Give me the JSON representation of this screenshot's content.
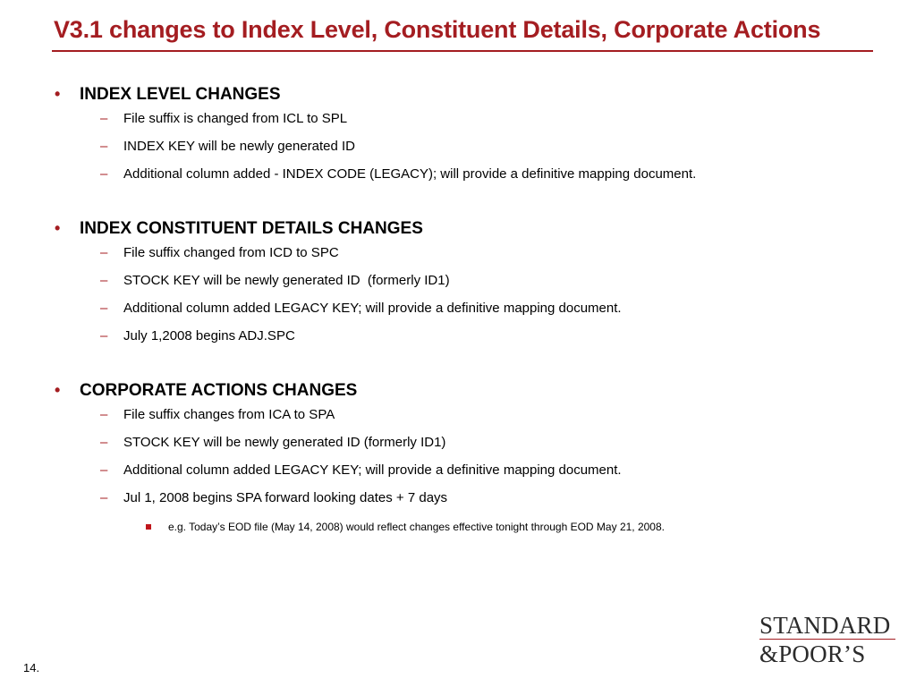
{
  "slide": {
    "title": "V3.1 changes to Index Level, Constituent Details, Corporate Actions",
    "page_number": "14.",
    "accent_color": "#a41d21"
  },
  "sections": [
    {
      "heading": "INDEX LEVEL CHANGES",
      "items": [
        "File suffix is changed from ICL to SPL",
        "INDEX KEY will be newly generated ID",
        "Additional column added - INDEX CODE (LEGACY); will provide a definitive mapping document."
      ]
    },
    {
      "heading": "INDEX CONSTITUENT DETAILS CHANGES",
      "items": [
        "File suffix changed from ICD to SPC",
        "STOCK KEY will be newly generated ID  (formerly ID1)",
        "Additional column added LEGACY KEY; will provide a definitive mapping document.",
        "July 1,2008 begins ADJ.SPC"
      ]
    },
    {
      "heading": "CORPORATE ACTIONS CHANGES",
      "items": [
        "File suffix changes from ICA to SPA",
        "STOCK KEY will be newly generated ID (formerly ID1)",
        "Additional column added LEGACY KEY; will provide a definitive mapping document.",
        "Jul 1, 2008 begins SPA forward looking dates + 7 days"
      ],
      "subitem": "e.g. Today’s EOD file (May 14, 2008) would reflect changes effective tonight through EOD May 21, 2008."
    }
  ],
  "logo": {
    "line1": "STANDARD",
    "line2": "&POOR’S"
  },
  "icons": {
    "level1_bullet": "•",
    "level2_dash": "–"
  }
}
